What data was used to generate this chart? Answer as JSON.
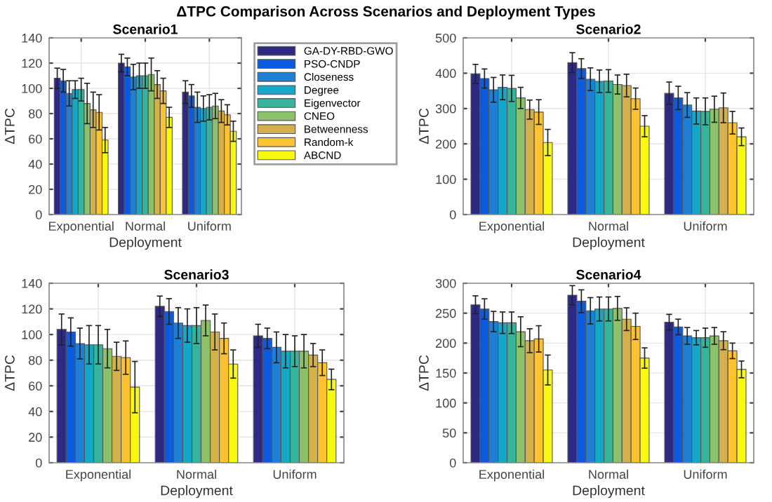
{
  "chart_data": [
    {
      "type": "bar",
      "title": "Scenario1",
      "xlabel": "Deployment",
      "ylabel": "ΔTPC",
      "annotations": [
        "ΔTPC Comparison Across Scenarios and Deployment Types"
      ],
      "categories": [
        "Exponential",
        "Normal",
        "Uniform"
      ],
      "ylim": [
        0,
        140
      ],
      "yticks": [
        0,
        20,
        40,
        60,
        80,
        100,
        120,
        140
      ],
      "grid": true,
      "legend": "right",
      "series": [
        {
          "name": "GA-DY-RBD-GWO",
          "color": "#2e2a84",
          "values": [
            108,
            120,
            97
          ],
          "errors": [
            8,
            7,
            9
          ]
        },
        {
          "name": "PSO-CNDP",
          "color": "#0b5be0",
          "values": [
            106,
            117,
            94
          ],
          "errors": [
            9,
            7,
            9
          ]
        },
        {
          "name": "Closeness",
          "color": "#1f7fd4",
          "values": [
            96,
            109,
            85
          ],
          "errors": [
            10,
            10,
            12
          ]
        },
        {
          "name": "Degree",
          "color": "#13a8c8",
          "values": [
            99,
            110,
            84
          ],
          "errors": [
            7,
            10,
            10
          ]
        },
        {
          "name": "Eigenvector",
          "color": "#35b39b",
          "values": [
            99,
            110,
            85
          ],
          "errors": [
            9,
            10,
            10
          ]
        },
        {
          "name": "CNEO",
          "color": "#8cc06a",
          "values": [
            88,
            111,
            86
          ],
          "errors": [
            16,
            13,
            10
          ]
        },
        {
          "name": "Betweenness",
          "color": "#d4b04a",
          "values": [
            83,
            103,
            82
          ],
          "errors": [
            14,
            11,
            9
          ]
        },
        {
          "name": "Random-k",
          "color": "#fcc232",
          "values": [
            81,
            98,
            79
          ],
          "errors": [
            14,
            10,
            8
          ]
        },
        {
          "name": "ABCND",
          "color": "#f9f90f",
          "values": [
            59,
            77,
            66
          ],
          "errors": [
            10,
            8,
            8
          ]
        }
      ]
    },
    {
      "type": "bar",
      "title": "Scenario2",
      "xlabel": "Deployment",
      "ylabel": "ΔTPC",
      "categories": [
        "Exponential",
        "Normal",
        "Uniform"
      ],
      "ylim": [
        0,
        500
      ],
      "yticks": [
        0,
        100,
        200,
        300,
        400,
        500
      ],
      "grid": true,
      "series": [
        {
          "color": "#2e2a84",
          "values": [
            398,
            430,
            343
          ],
          "errors": [
            27,
            28,
            32
          ]
        },
        {
          "color": "#0b5be0",
          "values": [
            385,
            413,
            330
          ],
          "errors": [
            27,
            28,
            33
          ]
        },
        {
          "color": "#1f7fd4",
          "values": [
            353,
            383,
            310
          ],
          "errors": [
            35,
            32,
            35
          ]
        },
        {
          "color": "#13a8c8",
          "values": [
            360,
            377,
            293
          ],
          "errors": [
            35,
            32,
            37
          ]
        },
        {
          "color": "#35b39b",
          "values": [
            357,
            378,
            292
          ],
          "errors": [
            37,
            32,
            38
          ]
        },
        {
          "color": "#8cc06a",
          "values": [
            330,
            368,
            298
          ],
          "errors": [
            30,
            27,
            37
          ]
        },
        {
          "color": "#d4b04a",
          "values": [
            297,
            365,
            302
          ],
          "errors": [
            27,
            32,
            42
          ]
        },
        {
          "color": "#fcc232",
          "values": [
            290,
            328,
            260
          ],
          "errors": [
            35,
            30,
            32
          ]
        },
        {
          "color": "#f9f90f",
          "values": [
            204,
            250,
            220
          ],
          "errors": [
            37,
            30,
            25
          ]
        }
      ]
    },
    {
      "type": "bar",
      "title": "Scenario3",
      "xlabel": "Deployment",
      "ylabel": "ΔTPC",
      "categories": [
        "Exponential",
        "Normal",
        "Uniform"
      ],
      "ylim": [
        0,
        140
      ],
      "yticks": [
        0,
        20,
        40,
        60,
        80,
        100,
        120,
        140
      ],
      "grid": true,
      "series": [
        {
          "color": "#2e2a84",
          "values": [
            104,
            122,
            99
          ],
          "errors": [
            12,
            8,
            9
          ]
        },
        {
          "color": "#0b5be0",
          "values": [
            102,
            118,
            97
          ],
          "errors": [
            11,
            10,
            8
          ]
        },
        {
          "color": "#1f7fd4",
          "values": [
            93,
            109,
            90
          ],
          "errors": [
            12,
            12,
            12
          ]
        },
        {
          "color": "#13a8c8",
          "values": [
            92,
            107,
            87
          ],
          "errors": [
            15,
            13,
            13
          ]
        },
        {
          "color": "#35b39b",
          "values": [
            92,
            107,
            87
          ],
          "errors": [
            15,
            14,
            12
          ]
        },
        {
          "color": "#8cc06a",
          "values": [
            89,
            111,
            87
          ],
          "errors": [
            15,
            12,
            13
          ]
        },
        {
          "color": "#d4b04a",
          "values": [
            83,
            102,
            84
          ],
          "errors": [
            11,
            14,
            9
          ]
        },
        {
          "color": "#fcc232",
          "values": [
            82,
            97,
            78
          ],
          "errors": [
            13,
            12,
            10
          ]
        },
        {
          "color": "#f9f90f",
          "values": [
            59,
            77,
            65
          ],
          "errors": [
            20,
            11,
            8
          ]
        }
      ]
    },
    {
      "type": "bar",
      "title": "Scenario4",
      "xlabel": "Deployment",
      "ylabel": "ΔTPC",
      "categories": [
        "Exponential",
        "Normal",
        "Uniform"
      ],
      "ylim": [
        0,
        300
      ],
      "yticks": [
        0,
        50,
        100,
        150,
        200,
        250,
        300
      ],
      "grid": true,
      "series": [
        {
          "color": "#2e2a84",
          "values": [
            264,
            280,
            235
          ],
          "errors": [
            15,
            16,
            13
          ]
        },
        {
          "color": "#0b5be0",
          "values": [
            257,
            270,
            227
          ],
          "errors": [
            17,
            19,
            13
          ]
        },
        {
          "color": "#1f7fd4",
          "values": [
            236,
            254,
            212
          ],
          "errors": [
            17,
            22,
            14
          ]
        },
        {
          "color": "#13a8c8",
          "values": [
            234,
            257,
            209
          ],
          "errors": [
            18,
            20,
            12
          ]
        },
        {
          "color": "#35b39b",
          "values": [
            234,
            257,
            209
          ],
          "errors": [
            18,
            20,
            16
          ]
        },
        {
          "color": "#8cc06a",
          "values": [
            219,
            258,
            212
          ],
          "errors": [
            25,
            20,
            14
          ]
        },
        {
          "color": "#d4b04a",
          "values": [
            204,
            240,
            204
          ],
          "errors": [
            20,
            19,
            15
          ]
        },
        {
          "color": "#fcc232",
          "values": [
            207,
            228,
            187
          ],
          "errors": [
            22,
            22,
            13
          ]
        },
        {
          "color": "#f9f90f",
          "values": [
            155,
            175,
            156
          ],
          "errors": [
            25,
            17,
            14
          ]
        }
      ]
    }
  ]
}
